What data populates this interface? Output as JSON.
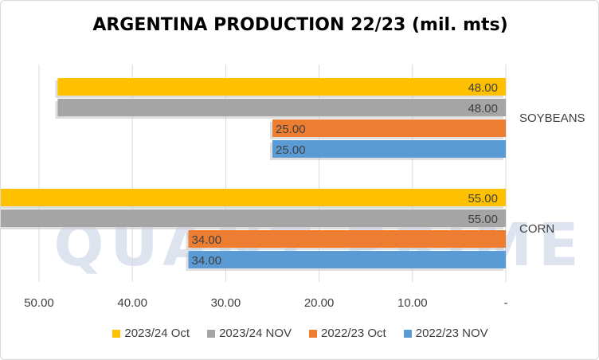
{
  "chart_data": {
    "type": "bar",
    "orientation": "horizontal",
    "title": "ARGENTINA PRODUCTION 22/23 (mil. mts)",
    "categories": [
      "SOYBEANS",
      "CORN"
    ],
    "series": [
      {
        "name": "2023/24 Oct",
        "color": "#ffc000",
        "values": [
          48.0,
          55.0
        ],
        "labels": [
          "48.00",
          "55.00"
        ]
      },
      {
        "name": "2023/24 NOV",
        "color": "#a5a5a5",
        "values": [
          48.0,
          55.0
        ],
        "labels": [
          "48.00",
          "55.00"
        ]
      },
      {
        "name": "2022/23 Oct",
        "color": "#ed7d31",
        "values": [
          25.0,
          34.0
        ],
        "labels": [
          "25.00",
          "34.00"
        ]
      },
      {
        "name": "2022/23 NOV",
        "color": "#5b9bd5",
        "values": [
          25.0,
          34.0
        ],
        "labels": [
          "25.00",
          "34.00"
        ]
      }
    ],
    "x_axis": {
      "reversed": true,
      "xlim": [
        0,
        50
      ],
      "ticks": [
        50,
        40,
        30,
        20,
        10,
        0
      ],
      "tick_labels": [
        "50.00",
        "40.00",
        "30.00",
        "20.00",
        "10.00",
        "-"
      ]
    },
    "category_labels_side": "right",
    "grid": true,
    "legend_position": "bottom",
    "watermark": "QUANT PRIME"
  }
}
